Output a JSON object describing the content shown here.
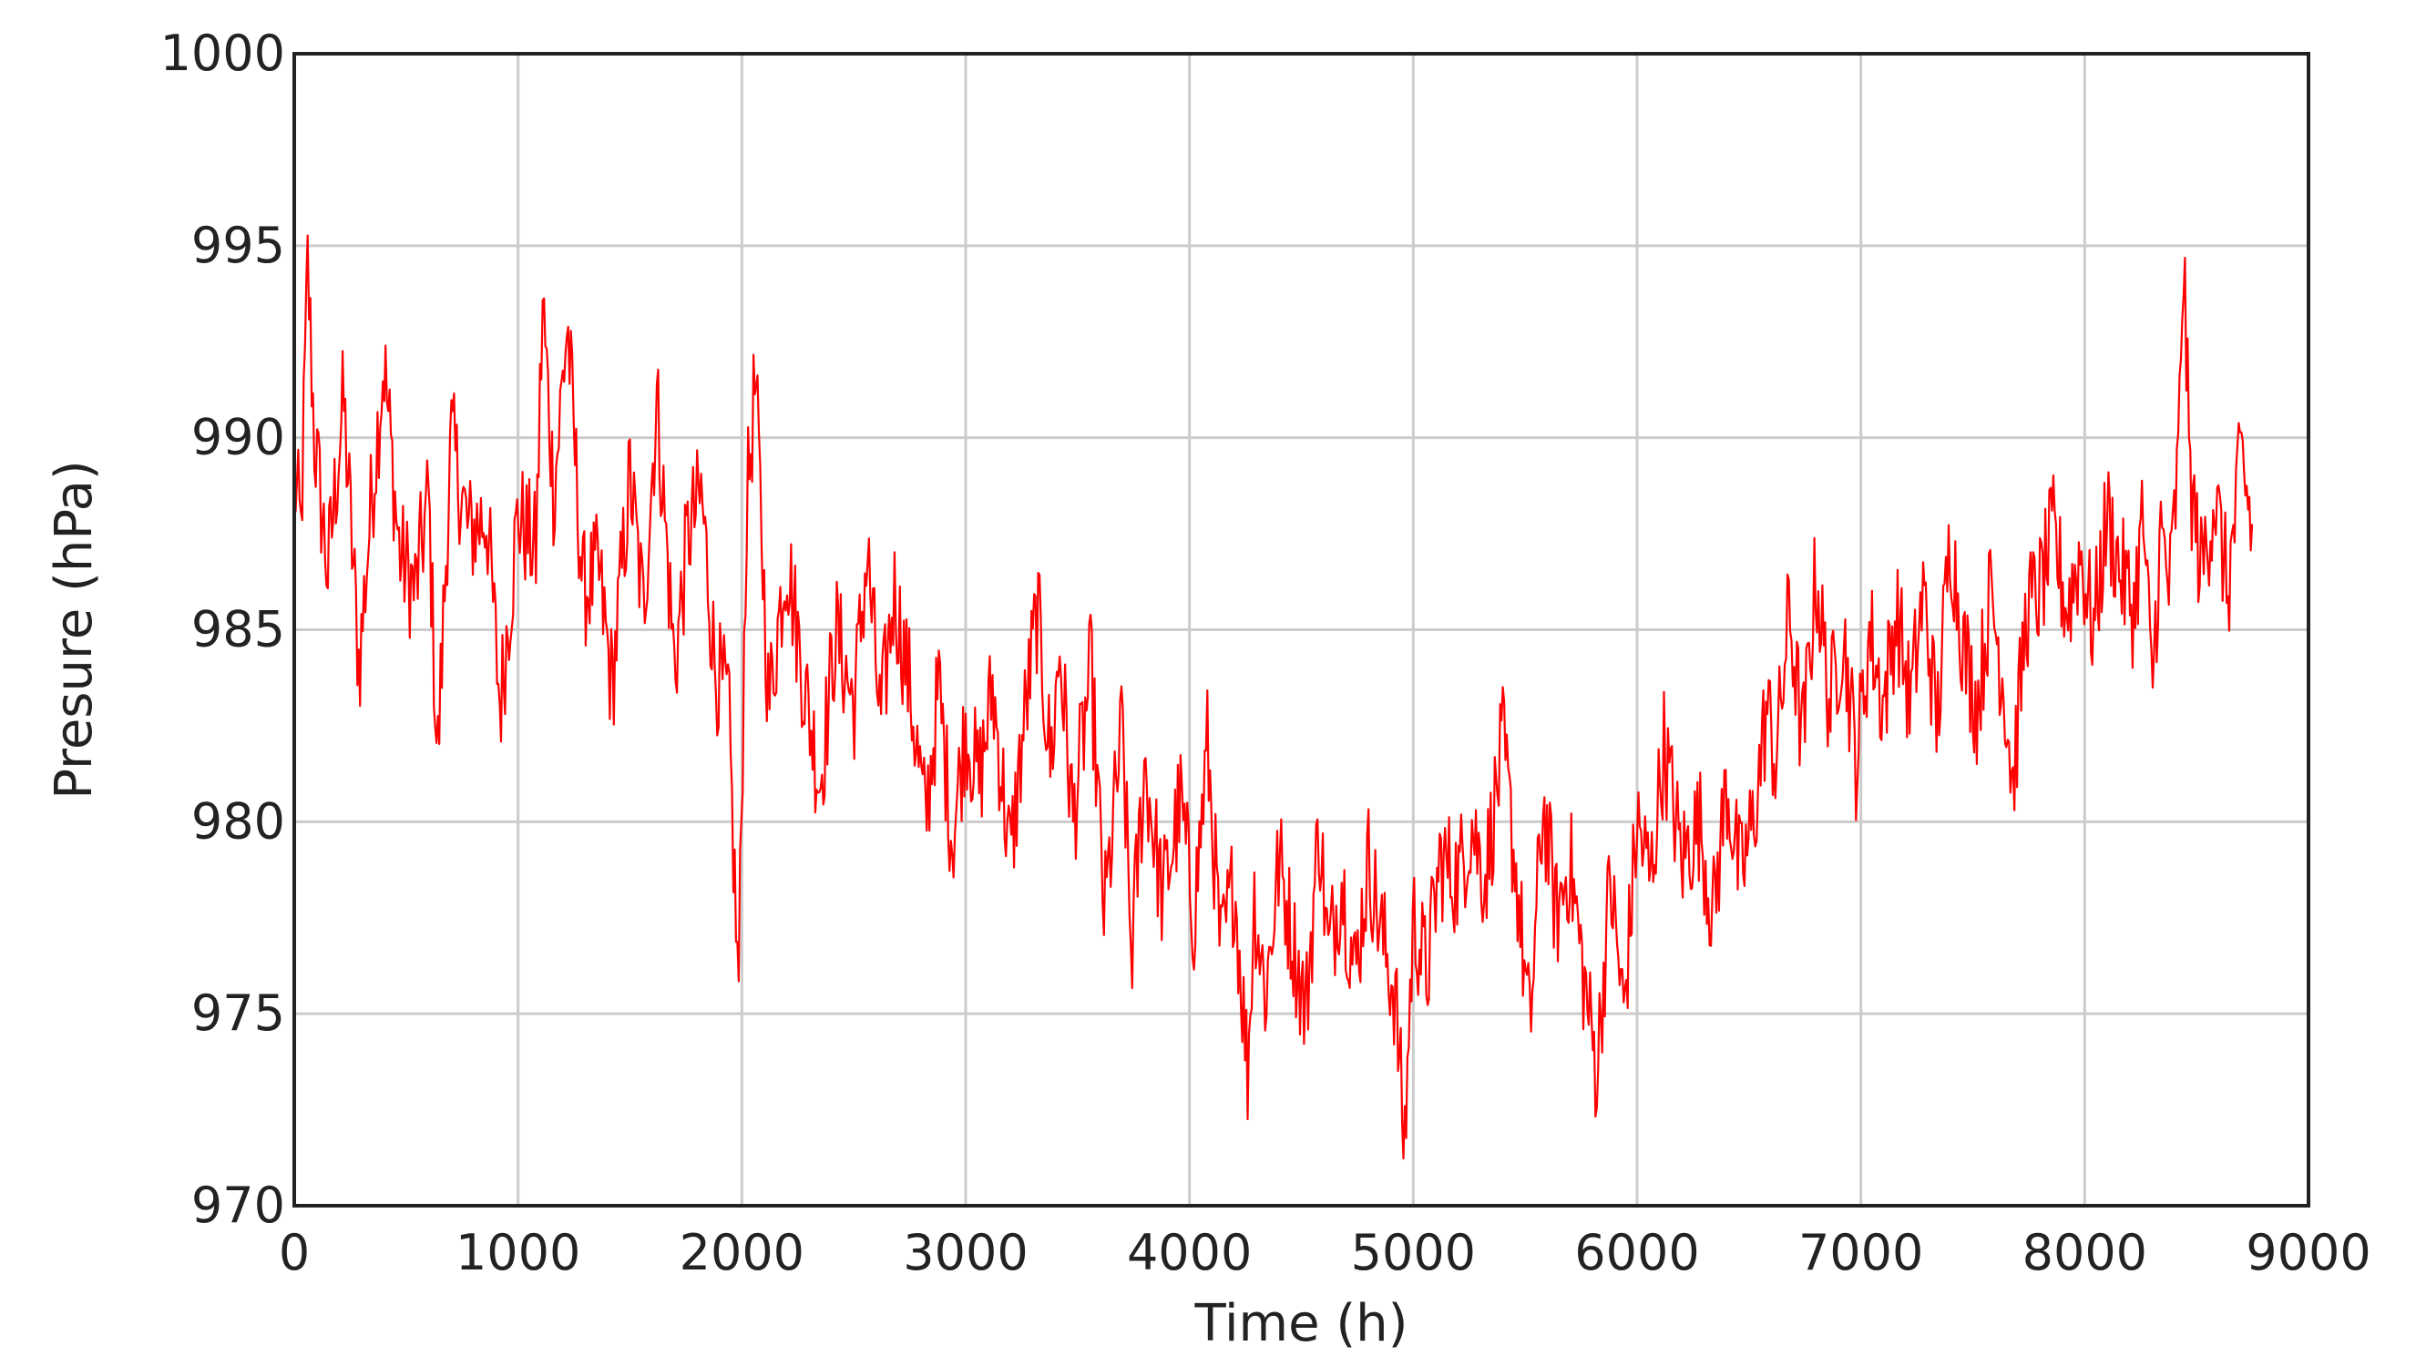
{
  "chart_data": {
    "type": "line",
    "title": "",
    "xlabel": "Time (h)",
    "ylabel": "Presure (hPa)",
    "xlim": [
      0,
      9000
    ],
    "ylim": [
      970,
      1000
    ],
    "x_ticks": [
      0,
      1000,
      2000,
      3000,
      4000,
      5000,
      6000,
      7000,
      8000,
      9000
    ],
    "y_ticks": [
      970,
      975,
      980,
      985,
      990,
      995,
      1000
    ],
    "x_tick_labels": [
      "0",
      "1000",
      "2000",
      "3000",
      "4000",
      "5000",
      "6000",
      "7000",
      "8000",
      "9000"
    ],
    "y_tick_labels": [
      "970",
      "975",
      "980",
      "985",
      "990",
      "995",
      "1000"
    ],
    "grid": true,
    "colors": {
      "series": "#ff0000",
      "grid": "#cccccc",
      "axis": "#222222"
    },
    "series": [
      {
        "x": [
          0,
          30,
          60,
          90,
          150,
          220,
          290,
          340,
          400,
          470,
          540,
          600,
          640,
          700,
          780,
          860,
          920,
          1000,
          1080,
          1110,
          1160,
          1220,
          1290,
          1360,
          1420,
          1500,
          1560,
          1620,
          1700,
          1760,
          1820,
          1880,
          1940,
          1985,
          2020,
          2060,
          2120,
          2200,
          2280,
          2350,
          2420,
          2500,
          2560,
          2620,
          2680,
          2750,
          2820,
          2880,
          2940,
          3000,
          3060,
          3120,
          3200,
          3260,
          3320,
          3380,
          3420,
          3480,
          3560,
          3620,
          3700,
          3740,
          3800,
          3880,
          3960,
          4020,
          4080,
          4140,
          4200,
          4260,
          4290,
          4340,
          4400,
          4460,
          4520,
          4580,
          4620,
          4680,
          4740,
          4800,
          4860,
          4920,
          4960,
          5000,
          5060,
          5120,
          5200,
          5260,
          5320,
          5400,
          5470,
          5520,
          5580,
          5640,
          5700,
          5760,
          5820,
          5880,
          5940,
          6000,
          6060,
          6120,
          6200,
          6280,
          6340,
          6400,
          6460,
          6520,
          6580,
          6620,
          6680,
          6740,
          6800,
          6860,
          6920,
          6980,
          7040,
          7100,
          7160,
          7220,
          7280,
          7340,
          7400,
          7460,
          7520,
          7580,
          7640,
          7680,
          7740,
          7800,
          7860,
          7920,
          7980,
          8040,
          8100,
          8160,
          8220,
          8260,
          8300,
          8340,
          8380,
          8420,
          8440,
          8470,
          8520,
          8580,
          8640,
          8700,
          8750
        ],
        "y": [
          989,
          987.5,
          994.5,
          990,
          986.5,
          991,
          984,
          988,
          992,
          987,
          986,
          988.5,
          981.5,
          990,
          987.5,
          988,
          983,
          988,
          987,
          993.5,
          988.5,
          993,
          986,
          986.5,
          983.5,
          989,
          985.5,
          991,
          984,
          987.5,
          988.5,
          984,
          983,
          975.5,
          988,
          991.5,
          983,
          987,
          983.5,
          981,
          985,
          983,
          987,
          982.5,
          986,
          983.5,
          980,
          983.5,
          979.5,
          982.5,
          981,
          983.5,
          979,
          982.5,
          985.5,
          981.5,
          984.5,
          980,
          984,
          977.5,
          982.5,
          976.5,
          981.5,
          978,
          980.5,
          977.5,
          982,
          976.5,
          978.5,
          973.5,
          978,
          975.5,
          979,
          977,
          975,
          980,
          976.5,
          978.5,
          976,
          979,
          977,
          975.5,
          971.5,
          977.5,
          976,
          979,
          978.5,
          980,
          978.5,
          982,
          978,
          974.5,
          980.5,
          977.5,
          979,
          976,
          973.5,
          978.5,
          975,
          980,
          978.5,
          982,
          979,
          980,
          977.5,
          981,
          978.5,
          980,
          983,
          981.5,
          985.5,
          982,
          986.5,
          983,
          985,
          981.5,
          985,
          983,
          985.5,
          983,
          986,
          982.5,
          987.5,
          984.5,
          983,
          986,
          983.5,
          981,
          985.5,
          986,
          987.5,
          985.5,
          987,
          985,
          988,
          986.5,
          985.5,
          988,
          983.5,
          987.5,
          986,
          989.5,
          995,
          989,
          986.5,
          988.5,
          986,
          989.5,
          987.5
        ]
      }
    ]
  }
}
